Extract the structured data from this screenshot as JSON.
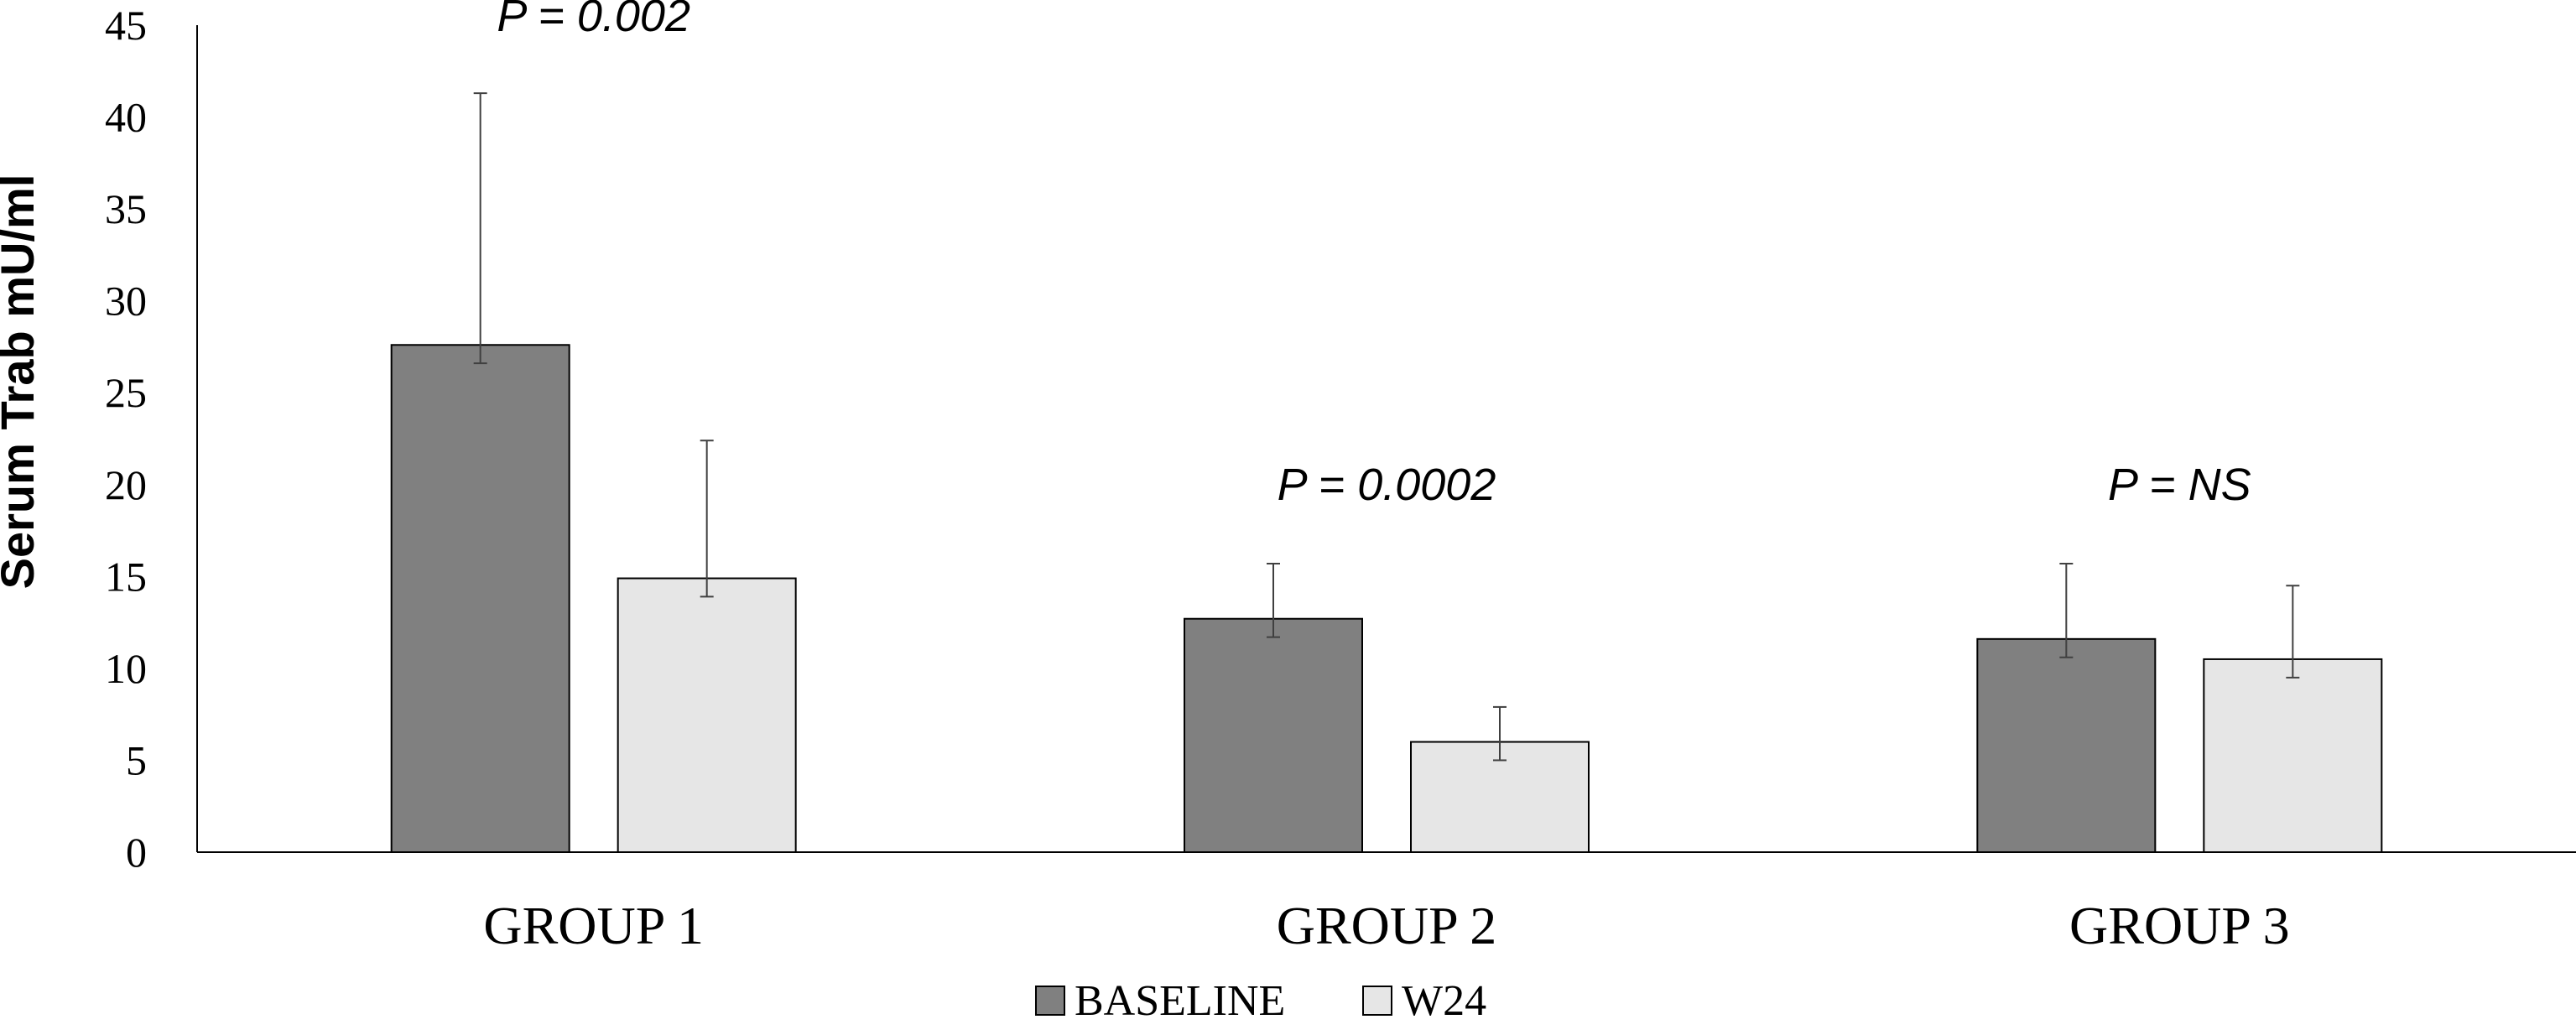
{
  "chart_data": {
    "type": "bar",
    "ylabel": "Serum Trab mU/ml",
    "xlabel": "",
    "ylim": [
      0,
      45
    ],
    "yticks": [
      0,
      5,
      10,
      15,
      20,
      25,
      30,
      35,
      40,
      45
    ],
    "categories": [
      "GROUP 1",
      "GROUP 2",
      "GROUP 3"
    ],
    "series": [
      {
        "name": "BASELINE",
        "color": "#808080",
        "values": [
          27.6,
          12.7,
          11.6
        ],
        "error_upper": [
          41.3,
          15.7,
          15.7
        ],
        "error_lower": [
          26.6,
          11.7,
          10.6
        ]
      },
      {
        "name": "W24",
        "color": "#e6e6e6",
        "values": [
          14.9,
          6.0,
          10.5
        ],
        "error_upper": [
          22.4,
          7.9,
          14.5
        ],
        "error_lower": [
          13.9,
          5.0,
          9.5
        ]
      }
    ],
    "annotations": [
      "P = 0.002",
      "P = 0.0002",
      "P = NS"
    ],
    "annotation_levels": [
      45.5,
      20.0,
      20.0
    ],
    "legend_position": "bottom",
    "grid": false
  }
}
